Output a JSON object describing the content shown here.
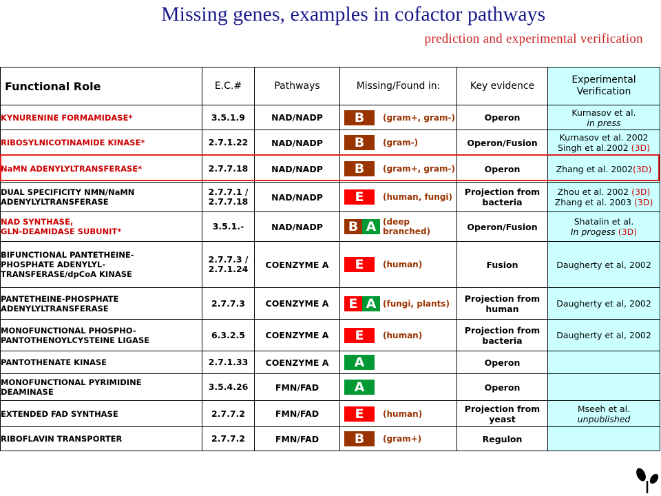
{
  "title": "Missing genes, examples in cofactor pathways",
  "subtitle": "prediction and experimental verification",
  "headers": {
    "role": "Functional Role",
    "ec": "E.C.#",
    "pathways": "Pathways",
    "missing": "Missing/Found in:",
    "evidence": "Key evidence",
    "verification_1": "Experimental",
    "verification_2": "Verification"
  },
  "rows": [
    {
      "role_1": "KYNURENINE FORMAMIDASE*",
      "role_2": "",
      "ec_1": "3.5.1.9",
      "ec_2": "",
      "pathway": "NAD/NADP",
      "b1": "B",
      "b2": "",
      "org_1": "(gram+, gram-)",
      "org_2": "",
      "evid_1": "Operon",
      "evid_2": "",
      "ver_1": "Kurnasov et al.",
      "ver_1b": "",
      "ver_2": "in press",
      "ver_2b": ""
    },
    {
      "role_1": "RIBOSYLNICOTINAMIDE KINASE*",
      "role_2": "",
      "ec_1": "2.7.1.22",
      "ec_2": "",
      "pathway": "NAD/NADP",
      "b1": "B",
      "b2": "",
      "org_1": "(gram-)",
      "org_2": "",
      "evid_1": "Operon/Fusion",
      "evid_2": "",
      "ver_1": "Kurnasov et al. 2002",
      "ver_1b": "",
      "ver_2": "Singh et al.2002 ",
      "ver_2b": "(3D)"
    },
    {
      "role_1": "NaMN ADENYLYLTRANSFERASE*",
      "role_2": "",
      "ec_1": "2.7.7.18",
      "ec_2": "",
      "pathway": "NAD/NADP",
      "b1": "B",
      "b2": "",
      "org_1": "(gram+, gram-)",
      "org_2": "",
      "evid_1": "Operon",
      "evid_2": "",
      "ver_1": "Zhang et al. 2002",
      "ver_1b": "(3D)",
      "ver_2": "",
      "ver_2b": ""
    },
    {
      "role_1": "DUAL SPECIFICITY NMN/NaMN",
      "role_2": "ADENYLYLTRANSFERASE",
      "ec_1": "2.7.7.1 /",
      "ec_2": "2.7.7.18",
      "pathway": "NAD/NADP",
      "b1": "E",
      "b2": "",
      "org_1": "(human, fungi)",
      "org_2": "",
      "evid_1": "Projection from",
      "evid_2": "bacteria",
      "ver_1": "Zhou et al. 2002 ",
      "ver_1b": "(3D)",
      "ver_2": "Zhang et al. 2003 ",
      "ver_2b": "(3D)"
    },
    {
      "role_1": "NAD SYNTHASE,",
      "role_2": "GLN-DEAMIDASE SUBUNIT*",
      "ec_1": "3.5.1.-",
      "ec_2": "",
      "pathway": "NAD/NADP",
      "b1": "B",
      "b2": "A",
      "org_1": "(deep",
      "org_2": "branched)",
      "evid_1": "Operon/Fusion",
      "evid_2": "",
      "ver_1": "Shatalin et al.",
      "ver_1b": "",
      "ver_2": "In progess ",
      "ver_2b": "(3D)"
    },
    {
      "role_1": "BIFUNCTIONAL PANTETHEINE-",
      "role_2": "PHOSPHATE ADENYLYL-",
      "role_3": "TRANSFERASE/dpCoA KINASE",
      "ec_1": "2.7.7.3 /",
      "ec_2": "2.7.1.24",
      "pathway": "COENZYME A",
      "b1": "E",
      "b2": "",
      "org_1": "(human)",
      "org_2": "",
      "evid_1": "Fusion",
      "evid_2": "",
      "ver_1": "Daugherty et al, 2002",
      "ver_1b": "",
      "ver_2": "",
      "ver_2b": ""
    },
    {
      "role_1": "PANTETHEINE-PHOSPHATE",
      "role_2": "ADENYLYLTRANSFERASE",
      "ec_1": "2.7.7.3",
      "ec_2": "",
      "pathway": "COENZYME A",
      "b1": "E",
      "b2": "A",
      "org_1": "(fungi, plants)",
      "org_2": "",
      "evid_1": "Projection from",
      "evid_2": "human",
      "ver_1": "Daugherty et al, 2002",
      "ver_1b": "",
      "ver_2": "",
      "ver_2b": ""
    },
    {
      "role_1": "MONOFUNCTIONAL PHOSPHO-",
      "role_2": "PANTOTHENOYLCYSTEINE LIGASE",
      "ec_1": "6.3.2.5",
      "ec_2": "",
      "pathway": "COENZYME A",
      "b1": "E",
      "b2": "",
      "org_1": "(human)",
      "org_2": "",
      "evid_1": "Projection from",
      "evid_2": "bacteria",
      "ver_1": "Daugherty et al, 2002",
      "ver_1b": "",
      "ver_2": "",
      "ver_2b": ""
    },
    {
      "role_1": "PANTOTHENATE KINASE",
      "role_2": "",
      "ec_1": "2.7.1.33",
      "ec_2": "",
      "pathway": "COENZYME A",
      "b1": "A",
      "b2": "",
      "org_1": "",
      "org_2": "",
      "evid_1": "Operon",
      "evid_2": "",
      "ver_1": "",
      "ver_1b": "",
      "ver_2": "",
      "ver_2b": ""
    },
    {
      "role_1": "MONOFUNCTIONAL PYRIMIDINE",
      "role_2": "DEAMINASE",
      "ec_1": "3.5.4.26",
      "ec_2": "",
      "pathway": "FMN/FAD",
      "b1": "A",
      "b2": "",
      "org_1": "",
      "org_2": "",
      "evid_1": "Operon",
      "evid_2": "",
      "ver_1": "",
      "ver_1b": "",
      "ver_2": "",
      "ver_2b": ""
    },
    {
      "role_1": "EXTENDED FAD SYNTHASE",
      "role_2": "",
      "ec_1": "2.7.7.2",
      "ec_2": "",
      "pathway": "FMN/FAD",
      "b1": "E",
      "b2": "",
      "org_1": "(human)",
      "org_2": "",
      "evid_1": "Projection from",
      "evid_2": "yeast",
      "ver_1": "Mseeh et al.",
      "ver_1b": "",
      "ver_2": "unpublished",
      "ver_2b": ""
    },
    {
      "role_1": "RIBOFLAVIN TRANSPORTER",
      "role_2": "",
      "ec_1": "2.7.7.2",
      "ec_2": "",
      "pathway": "FMN/FAD",
      "b1": "B",
      "b2": "",
      "org_1": "(gram+)",
      "org_2": "",
      "evid_1": "Regulon",
      "evid_2": "",
      "ver_1": "",
      "ver_1b": "",
      "ver_2": "",
      "ver_2b": ""
    }
  ],
  "colors": {
    "title": "#1a1a8c",
    "subtitle": "#cc2222",
    "B": "#993300",
    "E": "#ff0000",
    "A": "#009933",
    "verification_bg": "#ccffff",
    "highlight": "#e02020"
  },
  "logo_icon": "sprout-logo-icon"
}
